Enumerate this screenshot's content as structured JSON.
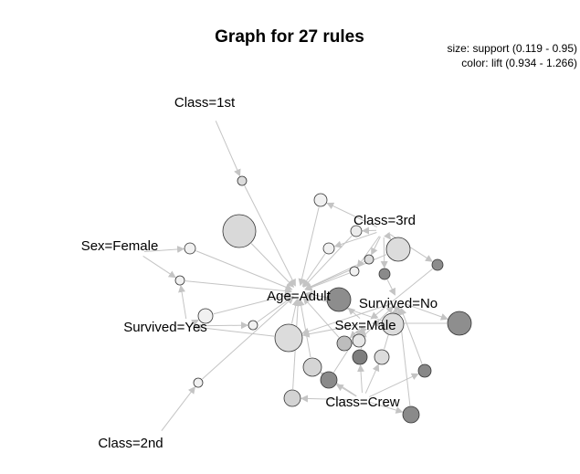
{
  "title": "Graph for 27 rules",
  "legend": {
    "size_text": "size: support (0.119 - 0.95)",
    "color_text": "color: lift (0.934 - 1.266)"
  },
  "colors": {
    "edge": "#c4c4c4",
    "node_stroke": "#333333",
    "low_lift": "#f2f2f2",
    "high_lift": "#7a7a7a"
  },
  "items": [
    "Class=1st",
    "Class=3rd",
    "Sex=Female",
    "Age=Adult",
    "Survived=No",
    "Survived=Yes",
    "Sex=Male",
    "Class=Crew",
    "Class=2nd"
  ]
}
